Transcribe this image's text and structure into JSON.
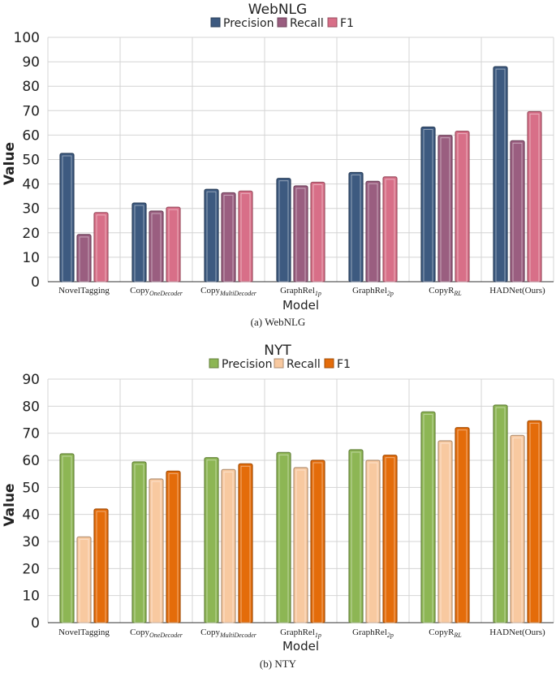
{
  "chart_data": [
    {
      "type": "bar",
      "title": "WebNLG",
      "xlabel": "Model",
      "ylabel": "Value",
      "ylim": [
        0,
        100
      ],
      "yticks": [
        0,
        10,
        20,
        30,
        40,
        50,
        60,
        70,
        80,
        90,
        100
      ],
      "caption": "(a)  WebNLG",
      "categories": [
        {
          "base": "NovelTagging",
          "sub": ""
        },
        {
          "base": "Copy",
          "sub": "OneDecoder"
        },
        {
          "base": "Copy",
          "sub": "MultiDecoder"
        },
        {
          "base": "GraphRel",
          "sub": "1p"
        },
        {
          "base": "GraphRel",
          "sub": "2p"
        },
        {
          "base": "CopyR",
          "sub": "RL"
        },
        {
          "base": "HADNet(Ours)",
          "sub": ""
        }
      ],
      "series": [
        {
          "name": "Precision",
          "color": "#3d5a80",
          "values": [
            52.5,
            32.2,
            37.8,
            42.3,
            44.7,
            63.3,
            88.0
          ]
        },
        {
          "name": "Recall",
          "color": "#9a5e80",
          "values": [
            19.3,
            28.9,
            36.4,
            39.2,
            41.1,
            59.9,
            57.7
          ]
        },
        {
          "name": "F1",
          "color": "#d86f88",
          "values": [
            28.3,
            30.5,
            37.1,
            40.7,
            42.9,
            61.6,
            69.6
          ]
        }
      ]
    },
    {
      "type": "bar",
      "title": "NYT",
      "xlabel": "Model",
      "ylabel": "Value",
      "ylim": [
        0,
        90
      ],
      "yticks": [
        0,
        10,
        20,
        30,
        40,
        50,
        60,
        70,
        80,
        90
      ],
      "caption": "(b)  NTY",
      "categories": [
        {
          "base": "NovelTagging",
          "sub": ""
        },
        {
          "base": "Copy",
          "sub": "OneDecoder"
        },
        {
          "base": "Copy",
          "sub": "MultiDecoder"
        },
        {
          "base": "GraphRel",
          "sub": "1p"
        },
        {
          "base": "GraphRel",
          "sub": "2p"
        },
        {
          "base": "CopyR",
          "sub": "RL"
        },
        {
          "base": "HADNet(Ours)",
          "sub": ""
        }
      ],
      "series": [
        {
          "name": "Precision",
          "color": "#8db654",
          "values": [
            62.4,
            59.4,
            61.0,
            62.9,
            63.9,
            77.9,
            80.4
          ]
        },
        {
          "name": "Recall",
          "color": "#f8c9a0",
          "values": [
            31.7,
            53.1,
            56.6,
            57.3,
            60.0,
            67.2,
            69.2
          ]
        },
        {
          "name": "F1",
          "color": "#e46c0a",
          "values": [
            42.0,
            56.0,
            58.7,
            60.0,
            61.9,
            72.1,
            74.6
          ]
        }
      ]
    }
  ]
}
